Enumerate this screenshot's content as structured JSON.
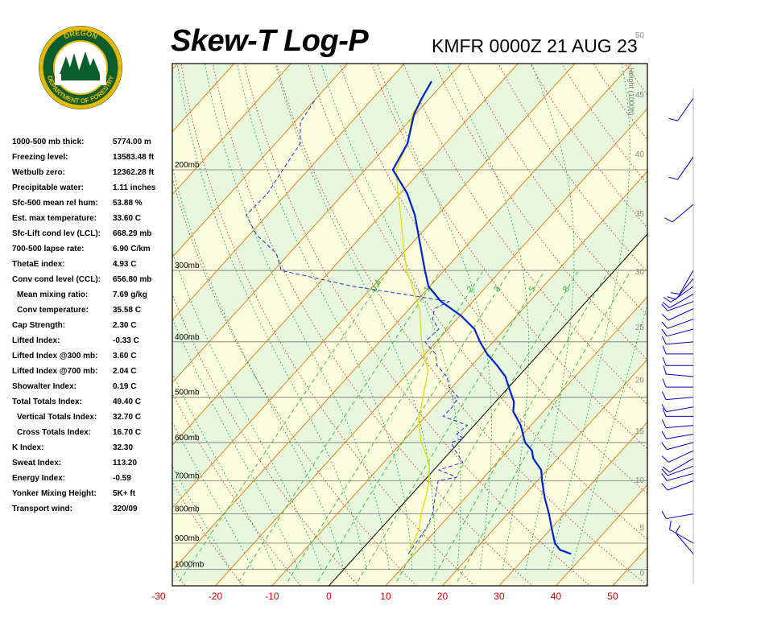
{
  "header": {
    "title": "Skew-T Log-P",
    "station": "KMFR 0000Z 21 AUG 23"
  },
  "logo": {
    "text_top": "OREGON",
    "text_bottom": "DEPARTMENT OF FORESTRY",
    "ring_color": "#e8b800",
    "field_color": "#0b5e2c"
  },
  "indices": [
    {
      "label": "1000-500 mb thick:",
      "value": "5774.00 m",
      "indent": false
    },
    {
      "label": "Freezing level:",
      "value": "13583.48 ft",
      "indent": false
    },
    {
      "label": "Wetbulb zero:",
      "value": "12362.28 ft",
      "indent": false
    },
    {
      "label": "Precipitable water:",
      "value": "1.11 inches",
      "indent": false
    },
    {
      "label": "Sfc-500 mean rel hum:",
      "value": "53.88 %",
      "indent": false
    },
    {
      "label": "Est. max temperature:",
      "value": "33.60 C",
      "indent": false
    },
    {
      "label": "Sfc-Lift cond lev (LCL):",
      "value": "668.29 mb",
      "indent": false
    },
    {
      "label": "700-500 lapse rate:",
      "value": "6.90 C/km",
      "indent": false
    },
    {
      "label": "ThetaE index:",
      "value": "4.93 C",
      "indent": false
    },
    {
      "label": "Conv cond level (CCL):",
      "value": "656.80 mb",
      "indent": false
    },
    {
      "label": "Mean mixing ratio:",
      "value": "7.69 g/kg",
      "indent": true
    },
    {
      "label": "Conv temperature:",
      "value": "35.58 C",
      "indent": true
    },
    {
      "label": "Cap Strength:",
      "value": "2.30 C",
      "indent": false
    },
    {
      "label": "Lifted Index:",
      "value": "-0.33 C",
      "indent": false
    },
    {
      "label": "Lifted Index @300 mb:",
      "value": "3.60 C",
      "indent": false
    },
    {
      "label": "Lifted Index @700 mb:",
      "value": "2.04 C",
      "indent": false
    },
    {
      "label": "Showalter Index:",
      "value": "0.19 C",
      "indent": false
    },
    {
      "label": "Total Totals Index:",
      "value": "49.40 C",
      "indent": false
    },
    {
      "label": "Vertical Totals Index:",
      "value": "32.70 C",
      "indent": true
    },
    {
      "label": "Cross Totals Index:",
      "value": "16.70 C",
      "indent": true
    },
    {
      "label": "K Index:",
      "value": "32.30",
      "indent": false
    },
    {
      "label": "Sweat Index:",
      "value": "113.20",
      "indent": false
    },
    {
      "label": "Energy Index:",
      "value": "-0.59",
      "indent": false
    },
    {
      "label": "Yonker Mixing Height:",
      "value": "5K+ ft",
      "indent": false
    },
    {
      "label": "Transport wind:",
      "value": "320/09",
      "indent": false
    }
  ],
  "chart_data": {
    "type": "line",
    "subtype": "skew-t log-p",
    "title": "",
    "xlabel": "",
    "ylabel": "",
    "x_ticks": [
      -30,
      -20,
      -10,
      0,
      10,
      20,
      30,
      40,
      50
    ],
    "pressure_levels": [
      {
        "p": 200,
        "label": "200mb"
      },
      {
        "p": 300,
        "label": "300mb"
      },
      {
        "p": 400,
        "label": "400mb"
      },
      {
        "p": 500,
        "label": "500mb"
      },
      {
        "p": 600,
        "label": "600mb"
      },
      {
        "p": 700,
        "label": "700mb"
      },
      {
        "p": 800,
        "label": "800mb"
      },
      {
        "p": 900,
        "label": "900mb"
      },
      {
        "p": 1000,
        "label": "1000mb"
      }
    ],
    "height_axis_label": "Height (1000ft)",
    "height_ticks": [
      0,
      5,
      10,
      15,
      20,
      25,
      30,
      35,
      40,
      45,
      50
    ],
    "mixing_ratio_labels": [
      "0.4",
      "1",
      "2",
      "3",
      "5",
      "8"
    ],
    "colors": {
      "temperature": "#0022cc",
      "dewpoint": "#2233dd",
      "parcel": "#dddd00",
      "isotherm": "#e07a00",
      "dry_adiabat": "#cc3030",
      "moist_adiabat": "#00a040",
      "mixing_ratio": "#33bb33",
      "band_green": "#e6f7dd",
      "band_yellow": "#fbfbdd",
      "x_tick_text": "#cc0000",
      "mixing_text": "#33bb33"
    },
    "temperature_profile": [
      [
        940,
        37.6
      ],
      [
        925,
        35.0
      ],
      [
        900,
        33.0
      ],
      [
        850,
        30.2
      ],
      [
        800,
        27.3
      ],
      [
        750,
        24.0
      ],
      [
        700,
        20.8
      ],
      [
        670,
        18.9
      ],
      [
        640,
        15.7
      ],
      [
        620,
        14.2
      ],
      [
        600,
        11.7
      ],
      [
        560,
        8.2
      ],
      [
        530,
        4.7
      ],
      [
        510,
        3.3
      ],
      [
        480,
        0.0
      ],
      [
        460,
        -2.3
      ],
      [
        440,
        -5.5
      ],
      [
        420,
        -9.1
      ],
      [
        400,
        -12.3
      ],
      [
        380,
        -15.3
      ],
      [
        360,
        -19.8
      ],
      [
        340,
        -25.6
      ],
      [
        320,
        -30.2
      ],
      [
        300,
        -33.4
      ],
      [
        270,
        -38.4
      ],
      [
        240,
        -44.0
      ],
      [
        220,
        -48.8
      ],
      [
        200,
        -55.1
      ],
      [
        180,
        -56.7
      ],
      [
        160,
        -60.2
      ],
      [
        150,
        -61.4
      ],
      [
        140,
        -62.4
      ]
    ],
    "dewpoint_profile": [
      [
        940,
        8.9
      ],
      [
        900,
        8.5
      ],
      [
        850,
        8.0
      ],
      [
        800,
        6.8
      ],
      [
        760,
        5.1
      ],
      [
        730,
        3.8
      ],
      [
        700,
        2.5
      ],
      [
        690,
        5.2
      ],
      [
        670,
        0.9
      ],
      [
        650,
        3.9
      ],
      [
        620,
        0.7
      ],
      [
        600,
        -1.3
      ],
      [
        590,
        0.2
      ],
      [
        580,
        -1.7
      ],
      [
        560,
        -1.2
      ],
      [
        540,
        -6.9
      ],
      [
        520,
        -6.8
      ],
      [
        500,
        -7.3
      ],
      [
        480,
        -10.5
      ],
      [
        460,
        -12.6
      ],
      [
        440,
        -16.1
      ],
      [
        420,
        -18.2
      ],
      [
        400,
        -22.0
      ],
      [
        380,
        -21.6
      ],
      [
        365,
        -24.3
      ],
      [
        350,
        -25.6
      ],
      [
        340,
        -24.2
      ],
      [
        330,
        -33.5
      ],
      [
        320,
        -43.4
      ],
      [
        300,
        -58.7
      ],
      [
        280,
        -62.3
      ],
      [
        260,
        -68.7
      ],
      [
        240,
        -73.7
      ],
      [
        220,
        -73.4
      ],
      [
        200,
        -74.5
      ],
      [
        180,
        -75.6
      ],
      [
        165,
        -79.0
      ],
      [
        150,
        -80.0
      ]
    ],
    "parcel_profile": [
      [
        940,
        9.0
      ],
      [
        900,
        8.0
      ],
      [
        850,
        6.8
      ],
      [
        800,
        4.8
      ],
      [
        750,
        3.0
      ],
      [
        700,
        0.9
      ],
      [
        650,
        -2.0
      ],
      [
        600,
        -6.6
      ],
      [
        550,
        -10.5
      ],
      [
        500,
        -13.5
      ],
      [
        450,
        -16.8
      ],
      [
        400,
        -22.6
      ],
      [
        350,
        -28.2
      ],
      [
        300,
        -36.6
      ],
      [
        270,
        -41.4
      ],
      [
        240,
        -46.5
      ],
      [
        220,
        -50.4
      ],
      [
        200,
        -54.5
      ],
      [
        180,
        -56.7
      ],
      [
        160,
        -60.5
      ],
      [
        140,
        -62.4
      ]
    ],
    "wind_barbs_dir_deg": [
      215,
      215,
      230,
      210,
      220,
      235,
      240,
      250,
      245,
      250,
      255,
      265,
      270,
      270,
      275,
      270,
      265,
      260,
      270,
      265,
      260,
      255,
      245,
      240,
      250,
      255,
      250,
      260,
      300,
      320
    ],
    "wind_barbs_pressure": [
      150,
      190,
      230,
      300,
      310,
      320,
      330,
      340,
      350,
      365,
      380,
      400,
      420,
      440,
      460,
      480,
      500,
      520,
      540,
      560,
      580,
      600,
      620,
      640,
      660,
      680,
      700,
      800,
      900,
      940
    ]
  }
}
